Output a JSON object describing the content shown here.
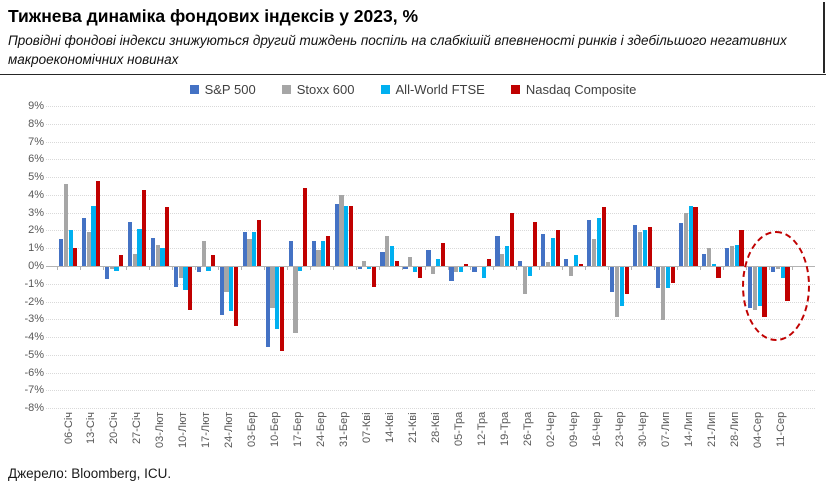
{
  "header": {
    "title": "Тижнева динаміка фондових індексів у 2023, %",
    "subtitle": "Провідні фондові індекси знижуються другий тиждень поспіль на слабкішій впевненості ринків і здебільшого негативних\nмакроекономічних новинах"
  },
  "source": "Джерело: Bloomberg, ICU.",
  "chart_data": {
    "type": "bar",
    "title": "Тижнева динаміка фондових індексів у 2023, %",
    "categories": [
      "06-Січ",
      "13-Січ",
      "20-Січ",
      "27-Січ",
      "03-Лют",
      "10-Лют",
      "17-Лют",
      "24-Лют",
      "03-Бер",
      "10-Бер",
      "17-Бер",
      "24-Бер",
      "31-Бер",
      "07-Кві",
      "14-Кві",
      "21-Кві",
      "28-Кві",
      "05-Тра",
      "12-Тра",
      "19-Тра",
      "26-Тра",
      "02-Чер",
      "09-Чер",
      "16-Чер",
      "23-Чер",
      "30-Чер",
      "07-Лип",
      "14-Лип",
      "21-Лип",
      "28-Лип",
      "04-Сер",
      "11-Сер"
    ],
    "series": [
      {
        "name": "S&P 500",
        "color": "#4472C4",
        "values": [
          1.5,
          2.7,
          -0.7,
          2.5,
          1.6,
          -1.1,
          -0.3,
          -2.7,
          1.9,
          -4.5,
          1.4,
          1.4,
          3.5,
          -0.1,
          0.8,
          -0.1,
          0.9,
          -0.8,
          -0.3,
          1.7,
          0.3,
          1.8,
          0.4,
          2.6,
          -1.4,
          2.3,
          -1.2,
          2.4,
          0.7,
          1.0,
          -2.3,
          -0.3
        ]
      },
      {
        "name": "Stoxx 600",
        "color": "#A6A6A6",
        "values": [
          4.6,
          1.9,
          -0.1,
          0.7,
          1.2,
          -0.6,
          1.4,
          -1.4,
          1.5,
          -2.3,
          -3.7,
          0.9,
          4.0,
          0.3,
          1.7,
          0.5,
          -0.4,
          -0.3,
          0.0,
          0.7,
          -1.5,
          0.2,
          -0.5,
          1.5,
          -2.8,
          1.9,
          -3.0,
          3.0,
          1.0,
          1.1,
          -2.4,
          -0.1
        ]
      },
      {
        "name": "All-World FTSE",
        "color": "#00B0F0",
        "values": [
          2.0,
          3.4,
          -0.2,
          2.1,
          1.0,
          -1.3,
          -0.2,
          -2.5,
          1.9,
          -3.5,
          -0.2,
          1.4,
          3.4,
          -0.1,
          1.1,
          -0.3,
          0.4,
          -0.3,
          -0.6,
          1.1,
          -0.5,
          1.6,
          0.6,
          2.7,
          -2.2,
          2.0,
          -1.2,
          3.4,
          0.1,
          1.2,
          -2.2,
          -0.6
        ]
      },
      {
        "name": "Nasdaq Composite",
        "color": "#C00000",
        "values": [
          1.0,
          4.8,
          0.6,
          4.3,
          3.3,
          -2.4,
          0.6,
          -3.3,
          2.6,
          -4.7,
          4.4,
          1.7,
          3.4,
          -1.1,
          0.3,
          -0.6,
          1.3,
          0.1,
          0.4,
          3.0,
          2.5,
          2.0,
          0.1,
          3.3,
          -1.5,
          2.2,
          -0.9,
          3.3,
          -0.6,
          2.0,
          -2.8,
          -1.9
        ]
      }
    ],
    "ylim": [
      -8,
      9
    ],
    "ytick_step": 1,
    "ytick_labels": [
      "9%",
      "8%",
      "7%",
      "6%",
      "5%",
      "4%",
      "3%",
      "2%",
      "1%",
      "0%",
      "-1%",
      "-2%",
      "-3%",
      "-4%",
      "-5%",
      "-6%",
      "-7%",
      "-8%"
    ],
    "xlabel": "",
    "ylabel": "",
    "grid": "horizontal-dotted",
    "legend_position": "top",
    "annotation": {
      "shape": "dashed-ellipse",
      "color": "#C00000",
      "around": [
        "04-Сер",
        "11-Сер"
      ]
    }
  }
}
